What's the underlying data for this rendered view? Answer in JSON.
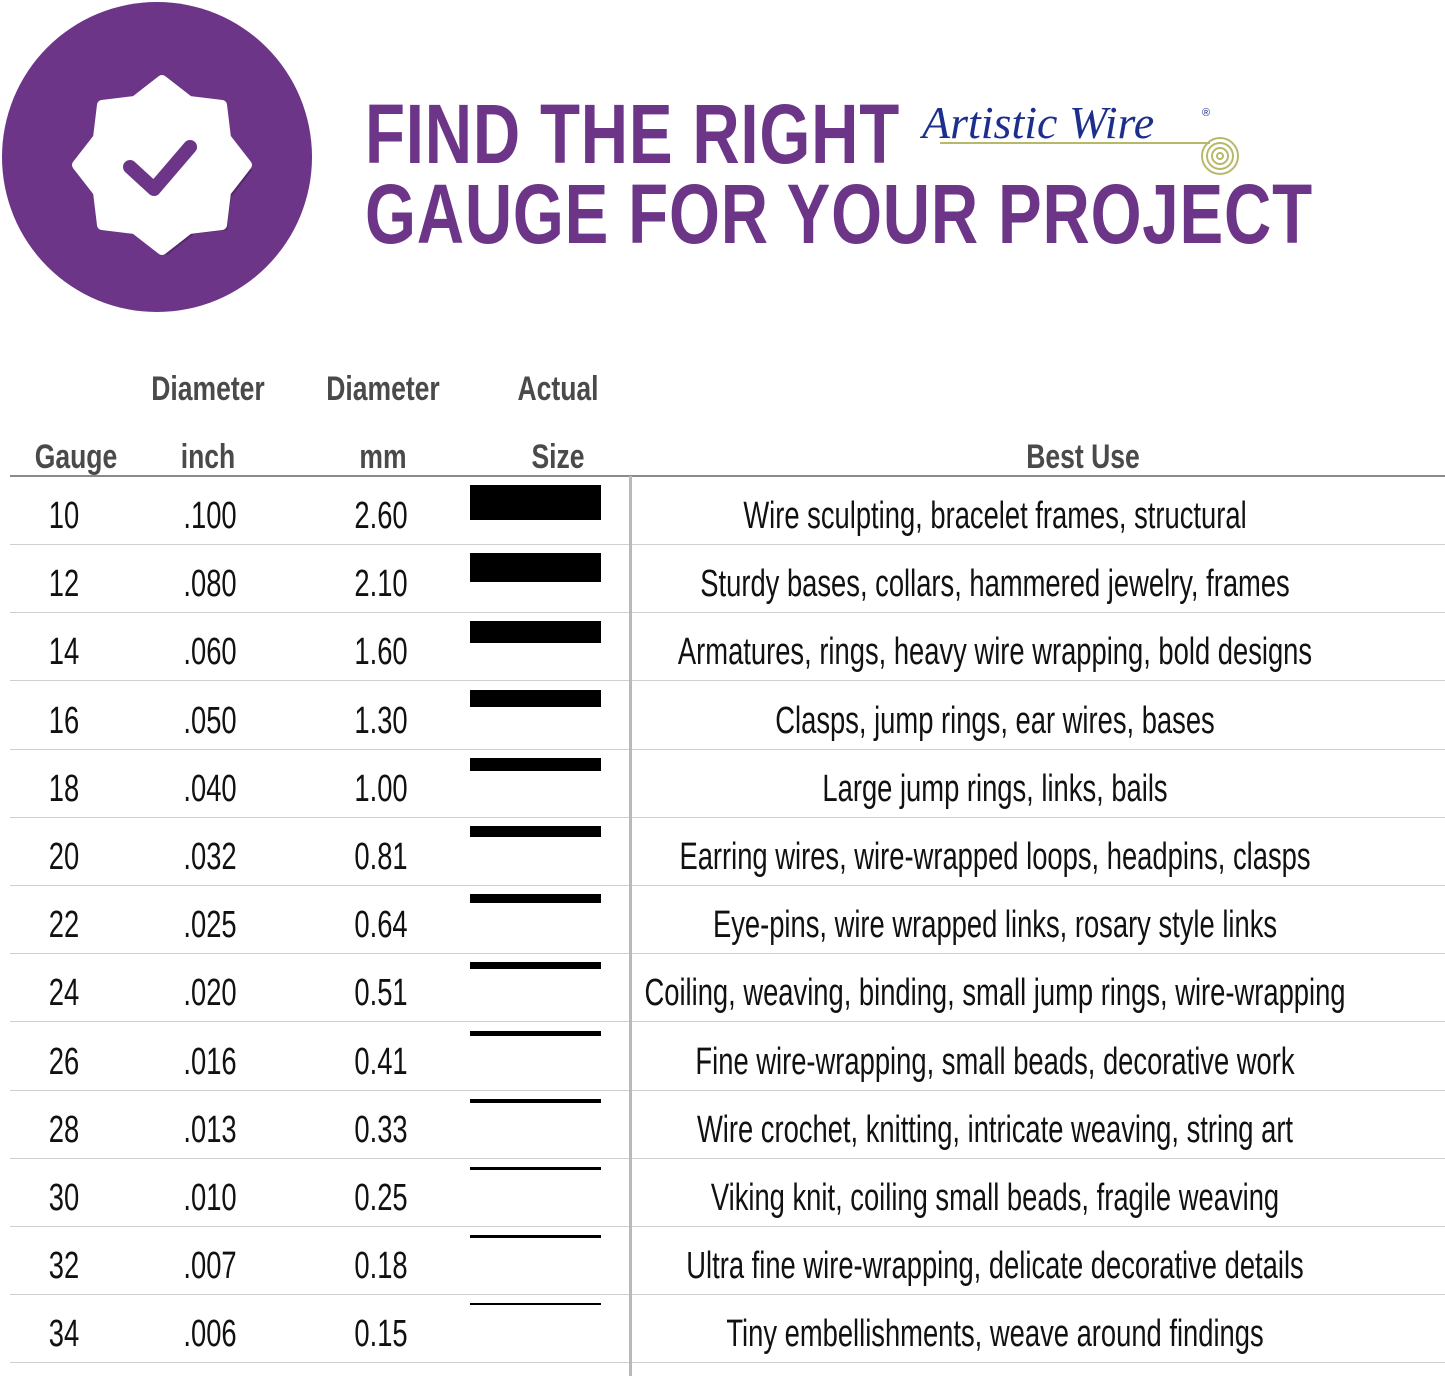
{
  "header": {
    "title_line1": "FIND THE RIGHT",
    "title_line2": "GAUGE FOR YOUR PROJECT",
    "brand_logo": "Artistic Wire®",
    "badge_icon": "check-badge-icon",
    "accent_color": "#6c3587"
  },
  "columns": {
    "gauge": "Gauge",
    "inch_top": "Diameter",
    "inch_bottom": "inch",
    "mm_top": "Diameter",
    "mm_bottom": "mm",
    "size_top": "Actual",
    "size_bottom": "Size",
    "best_use": "Best Use"
  },
  "rows": [
    {
      "gauge": "10",
      "inch": ".100",
      "mm": "2.60",
      "best_use": "Wire sculpting, bracelet frames, structural"
    },
    {
      "gauge": "12",
      "inch": ".080",
      "mm": "2.10",
      "best_use": "Sturdy bases, collars, hammered jewelry, frames"
    },
    {
      "gauge": "14",
      "inch": ".060",
      "mm": "1.60",
      "best_use": "Armatures, rings, heavy wire wrapping, bold designs"
    },
    {
      "gauge": "16",
      "inch": ".050",
      "mm": "1.30",
      "best_use": "Clasps, jump rings, ear wires, bases"
    },
    {
      "gauge": "18",
      "inch": ".040",
      "mm": "1.00",
      "best_use": "Large jump rings, links, bails"
    },
    {
      "gauge": "20",
      "inch": ".032",
      "mm": "0.81",
      "best_use": "Earring wires, wire-wrapped loops, headpins, clasps"
    },
    {
      "gauge": "22",
      "inch": ".025",
      "mm": "0.64",
      "best_use": "Eye-pins, wire wrapped links, rosary style links"
    },
    {
      "gauge": "24",
      "inch": ".020",
      "mm": "0.51",
      "best_use": "Coiling, weaving, binding, small jump rings, wire-wrapping"
    },
    {
      "gauge": "26",
      "inch": ".016",
      "mm": "0.41",
      "best_use": "Fine wire-wrapping, small beads, decorative work"
    },
    {
      "gauge": "28",
      "inch": ".013",
      "mm": "0.33",
      "best_use": "Wire crochet, knitting, intricate weaving, string art"
    },
    {
      "gauge": "30",
      "inch": ".010",
      "mm": "0.25",
      "best_use": "Viking knit, coiling small beads, fragile weaving"
    },
    {
      "gauge": "32",
      "inch": ".007",
      "mm": "0.18",
      "best_use": "Ultra fine wire-wrapping, delicate decorative details"
    },
    {
      "gauge": "34",
      "inch": ".006",
      "mm": "0.15",
      "best_use": "Tiny embellishments, weave around findings"
    }
  ]
}
